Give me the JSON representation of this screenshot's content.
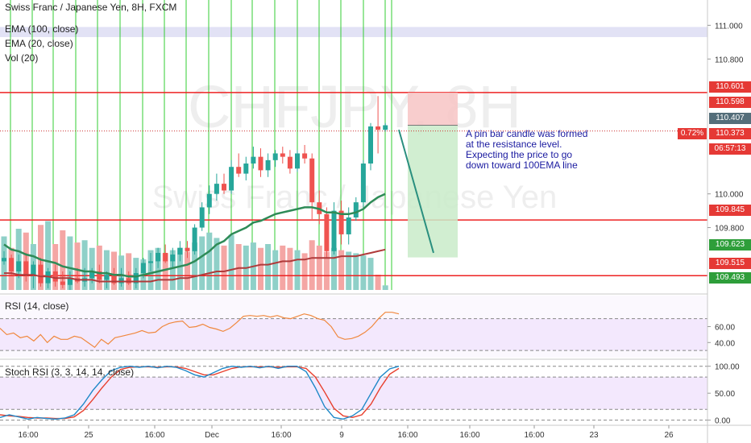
{
  "header": {
    "symbol_line": "Swiss Franc / Japanese Yen, 8H, FXCM",
    "ema100": "EMA (100, close)",
    "ema20": "EMA (20, close)",
    "vol": "Vol (20)"
  },
  "watermark": {
    "big": "CHFJPY, 8H",
    "small": "Swiss Franc / Japanese Yen"
  },
  "annotation": {
    "lines": [
      "A pin bar candle was formed",
      "at the resistance level.",
      "Expecting the price to go",
      "down toward 100EMA line"
    ]
  },
  "price_tags": {
    "t110601": "110.601",
    "t110598": "110.598",
    "t110407": "110.407",
    "t110373": "110.373",
    "pct": "0.72%",
    "countdown": "06:57:13",
    "t109845": "109.845",
    "t109623": "109.623",
    "t109515": "109.515",
    "t109493": "109.493"
  },
  "rsi_title": "RSI (14, close)",
  "stoch_title": "Stoch RSI (3, 3, 14, 14, close)",
  "colors": {
    "up": "#26a69a",
    "down": "#ef5350",
    "upVol": "#8fd0c8",
    "downVol": "#f4a6a4",
    "vline": "#33cc33",
    "hline": "#ee2222",
    "ema20": "#2e8b57",
    "ema100": "#b03a3a",
    "rsi": "#f0883e",
    "rsiBg": "#f3e8fd",
    "stochK": "#1e88c8",
    "stochD": "#e8402e",
    "axisText": "#333333",
    "gridDash": "#888888"
  },
  "chart_data": [
    {
      "type": "candlestick",
      "title": "Swiss Franc / Japanese Yen, 8H, FXCM",
      "ylim": [
        109.43,
        111.15
      ],
      "y_ticks": [
        111.0,
        110.8,
        110.0,
        109.8
      ],
      "x_tick_labels": [
        "16:00",
        "25",
        "16:00",
        "Dec",
        "16:00",
        "9",
        "16:00",
        "16:00",
        "16:00",
        "23",
        "26"
      ],
      "ohlc": [
        [
          109.6,
          109.66,
          109.58,
          109.62
        ],
        [
          109.62,
          109.64,
          109.52,
          109.54
        ],
        [
          109.54,
          109.64,
          109.5,
          109.6
        ],
        [
          109.6,
          109.65,
          109.48,
          109.52
        ],
        [
          109.52,
          109.6,
          109.44,
          109.58
        ],
        [
          109.58,
          109.62,
          109.45,
          109.47
        ],
        [
          109.47,
          109.56,
          109.44,
          109.54
        ],
        [
          109.54,
          109.58,
          109.45,
          109.48
        ],
        [
          109.48,
          109.54,
          109.44,
          109.46
        ],
        [
          109.46,
          109.54,
          109.43,
          109.5
        ],
        [
          109.5,
          109.56,
          109.47,
          109.48
        ],
        [
          109.48,
          109.56,
          109.45,
          109.5
        ],
        [
          109.5,
          109.56,
          109.47,
          109.54
        ],
        [
          109.54,
          109.58,
          109.47,
          109.49
        ],
        [
          109.49,
          109.54,
          109.44,
          109.52
        ],
        [
          109.52,
          109.56,
          109.46,
          109.47
        ],
        [
          109.47,
          109.56,
          109.45,
          109.5
        ],
        [
          109.5,
          109.54,
          109.46,
          109.47
        ],
        [
          109.47,
          109.56,
          109.44,
          109.53
        ],
        [
          109.53,
          109.62,
          109.5,
          109.59
        ],
        [
          109.59,
          109.65,
          109.54,
          109.6
        ],
        [
          109.6,
          109.68,
          109.56,
          109.65
        ],
        [
          109.65,
          109.7,
          109.59,
          109.6
        ],
        [
          109.6,
          109.68,
          109.56,
          109.64
        ],
        [
          109.64,
          109.72,
          109.6,
          109.68
        ],
        [
          109.68,
          109.72,
          109.62,
          109.66
        ],
        [
          109.66,
          109.82,
          109.64,
          109.8
        ],
        [
          109.8,
          109.95,
          109.78,
          109.92
        ],
        [
          109.92,
          110.05,
          109.88,
          110.0
        ],
        [
          110.0,
          110.12,
          109.96,
          110.06
        ],
        [
          110.06,
          110.12,
          110.0,
          110.02
        ],
        [
          110.02,
          110.2,
          110.0,
          110.16
        ],
        [
          110.16,
          110.24,
          110.1,
          110.12
        ],
        [
          110.12,
          110.22,
          110.08,
          110.18
        ],
        [
          110.18,
          110.28,
          110.15,
          110.22
        ],
        [
          110.22,
          110.27,
          110.1,
          110.14
        ],
        [
          110.14,
          110.24,
          110.1,
          110.2
        ],
        [
          110.2,
          110.26,
          110.16,
          110.24
        ],
        [
          110.24,
          110.28,
          110.18,
          110.22
        ],
        [
          110.22,
          110.26,
          110.12,
          110.15
        ],
        [
          110.15,
          110.26,
          110.13,
          110.24
        ],
        [
          110.24,
          110.29,
          110.18,
          110.21
        ],
        [
          110.21,
          110.24,
          109.85,
          109.95
        ],
        [
          109.95,
          110.02,
          109.82,
          109.88
        ],
        [
          109.88,
          109.92,
          109.62,
          109.66
        ],
        [
          109.66,
          109.95,
          109.64,
          109.9
        ],
        [
          109.9,
          109.96,
          109.7,
          109.76
        ],
        [
          109.76,
          109.92,
          109.7,
          109.86
        ],
        [
          109.86,
          109.98,
          109.84,
          109.95
        ],
        [
          109.95,
          110.2,
          109.92,
          110.18
        ],
        [
          110.18,
          110.42,
          110.14,
          110.4
        ],
        [
          110.4,
          110.58,
          110.24,
          110.38
        ],
        [
          110.38,
          110.42,
          110.37,
          110.407
        ]
      ],
      "volume": [
        70,
        55,
        80,
        75,
        60,
        85,
        90,
        60,
        78,
        70,
        62,
        65,
        55,
        58,
        52,
        50,
        45,
        48,
        42,
        40,
        52,
        55,
        48,
        52,
        55,
        50,
        62,
        70,
        75,
        68,
        58,
        72,
        60,
        58,
        62,
        55,
        60,
        52,
        58,
        55,
        52,
        48,
        65,
        58,
        50,
        55,
        52,
        50,
        48,
        45,
        42,
        20,
        6
      ],
      "ema20": [
        109.7,
        109.67,
        109.66,
        109.64,
        109.63,
        109.61,
        109.6,
        109.59,
        109.57,
        109.56,
        109.55,
        109.54,
        109.54,
        109.53,
        109.53,
        109.52,
        109.52,
        109.51,
        109.51,
        109.52,
        109.53,
        109.54,
        109.55,
        109.56,
        109.57,
        109.58,
        109.6,
        109.63,
        109.66,
        109.7,
        109.72,
        109.76,
        109.78,
        109.8,
        109.83,
        109.84,
        109.86,
        109.88,
        109.89,
        109.9,
        109.91,
        109.92,
        109.92,
        109.91,
        109.89,
        109.89,
        109.88,
        109.88,
        109.89,
        109.91,
        109.95,
        109.98,
        110.0
      ],
      "ema100": [
        109.53,
        109.53,
        109.52,
        109.52,
        109.52,
        109.51,
        109.51,
        109.5,
        109.5,
        109.5,
        109.49,
        109.49,
        109.49,
        109.48,
        109.48,
        109.48,
        109.48,
        109.48,
        109.48,
        109.48,
        109.48,
        109.49,
        109.49,
        109.49,
        109.5,
        109.5,
        109.51,
        109.52,
        109.53,
        109.54,
        109.54,
        109.55,
        109.56,
        109.56,
        109.57,
        109.58,
        109.58,
        109.59,
        109.6,
        109.6,
        109.61,
        109.61,
        109.62,
        109.62,
        109.62,
        109.62,
        109.63,
        109.63,
        109.63,
        109.64,
        109.65,
        109.66,
        109.67
      ],
      "horizontal_levels": [
        110.601,
        109.845,
        109.515
      ],
      "position": {
        "entry": 110.407,
        "stop": 110.601,
        "target": 109.623
      },
      "projection": {
        "from": 110.38,
        "to": 109.65
      }
    },
    {
      "type": "line",
      "title": "RSI (14, close)",
      "ylim": [
        20,
        100
      ],
      "y_ticks": [
        60.0,
        40.0
      ],
      "bands": [
        70,
        30
      ],
      "values": [
        58,
        50,
        52,
        46,
        48,
        42,
        50,
        40,
        48,
        44,
        44,
        48,
        46,
        40,
        34,
        44,
        38,
        46,
        48,
        50,
        52,
        55,
        52,
        53,
        60,
        64,
        66,
        67,
        59,
        60,
        63,
        59,
        57,
        54,
        58,
        65,
        73,
        74,
        73,
        74,
        72,
        74,
        71,
        70,
        73,
        76,
        74,
        70,
        68,
        60,
        47,
        44,
        45,
        48,
        53,
        60,
        70,
        78,
        78,
        76
      ]
    },
    {
      "type": "line",
      "title": "Stoch RSI (3, 3, 14, 14, close)",
      "ylim": [
        -5,
        110
      ],
      "y_ticks": [
        100.0,
        50.0,
        0.0
      ],
      "bands": [
        80,
        20
      ],
      "series": [
        {
          "values": [
            5,
            10,
            6,
            2,
            5,
            3,
            2,
            4,
            10,
            30,
            55,
            75,
            92,
            98,
            100,
            98,
            100,
            97,
            100,
            98,
            92,
            84,
            80,
            88,
            96,
            100,
            98,
            100,
            97,
            100,
            96,
            100,
            100,
            90,
            60,
            25,
            5,
            2,
            8,
            20,
            50,
            80,
            95,
            100
          ]
        },
        {
          "values": [
            10,
            8,
            7,
            5,
            4,
            4,
            3,
            3,
            6,
            18,
            38,
            60,
            80,
            94,
            98,
            99,
            99,
            98,
            99,
            99,
            96,
            90,
            84,
            84,
            90,
            96,
            99,
            99,
            99,
            99,
            98,
            99,
            99,
            96,
            80,
            52,
            22,
            8,
            5,
            10,
            30,
            60,
            85,
            96
          ]
        }
      ]
    }
  ]
}
